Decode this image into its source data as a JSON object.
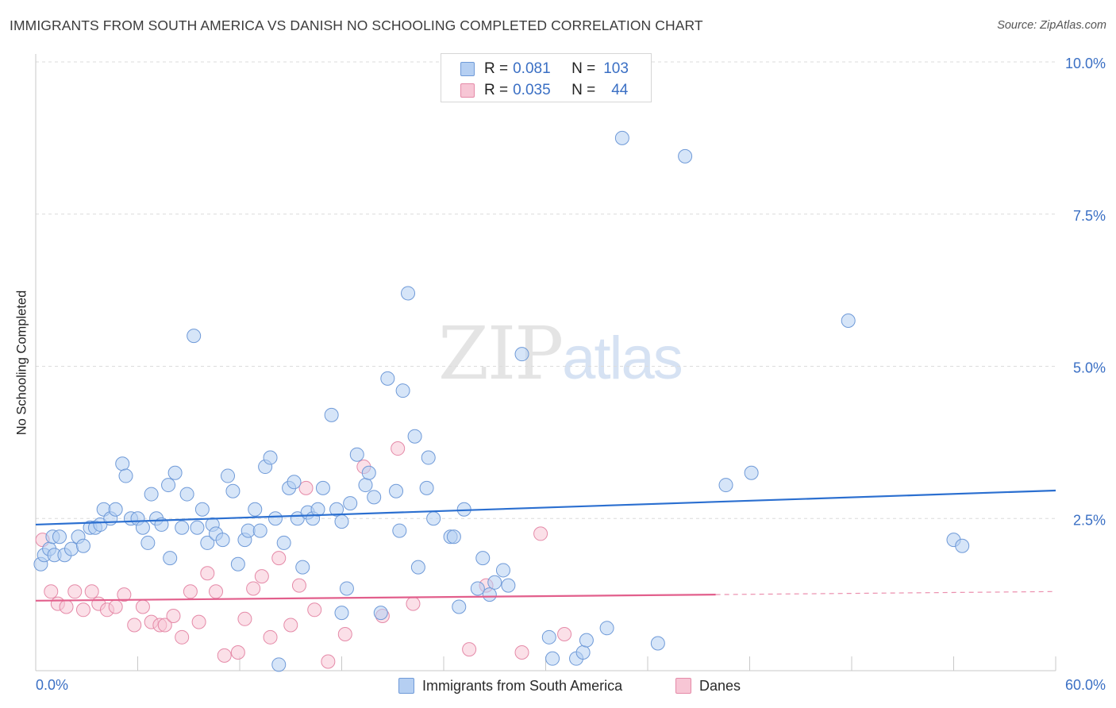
{
  "header": {
    "title": "IMMIGRANTS FROM SOUTH AMERICA VS DANISH NO SCHOOLING COMPLETED CORRELATION CHART",
    "source": "Source: ZipAtlas.com"
  },
  "watermark": {
    "part1": "ZIP",
    "part2": "atlas"
  },
  "legend": {
    "rows": [
      {
        "r_label": "R =",
        "r_value": "0.081",
        "n_label": "N =",
        "n_value": "103",
        "color": "#aecbf0",
        "border": "#6f9ad8"
      },
      {
        "r_label": "R =",
        "r_value": "0.035",
        "n_label": "N =",
        "n_value": "44",
        "color": "#f6c3d3",
        "border": "#e58aa8"
      }
    ]
  },
  "bottom_legend": {
    "series1": "Immigrants from South America",
    "series2": "Danes"
  },
  "colors": {
    "blue_fill": "#b5cff2",
    "blue_stroke": "#6f9ad8",
    "blue_line": "#2b6fd0",
    "pink_fill": "#f7c6d5",
    "pink_stroke": "#e58aa8",
    "pink_line": "#e25f8c",
    "tick_text": "#3a6fc4",
    "grid": "#dcdcdc"
  },
  "chart_data": {
    "type": "scatter",
    "title": "IMMIGRANTS FROM SOUTH AMERICA VS DANISH NO SCHOOLING COMPLETED CORRELATION CHART",
    "xlabel": "",
    "ylabel": "No Schooling Completed",
    "xlim": [
      0,
      60
    ],
    "ylim": [
      0,
      10.0
    ],
    "x_tick_labels": [
      "0.0%",
      "60.0%"
    ],
    "y_ticks": [
      2.5,
      5.0,
      7.5,
      10.0
    ],
    "y_tick_labels": [
      "2.5%",
      "5.0%",
      "7.5%",
      "10.0%"
    ],
    "grid": "horizontal dashed",
    "series": [
      {
        "name": "Immigrants from South America",
        "trend": {
          "x": [
            0,
            60
          ],
          "y": [
            2.4,
            2.96
          ]
        },
        "points": [
          [
            0.3,
            1.75
          ],
          [
            0.5,
            1.9
          ],
          [
            0.8,
            2.0
          ],
          [
            1.0,
            2.2
          ],
          [
            1.1,
            1.9
          ],
          [
            1.4,
            2.2
          ],
          [
            1.7,
            1.9
          ],
          [
            2.1,
            2.0
          ],
          [
            2.5,
            2.2
          ],
          [
            2.8,
            2.05
          ],
          [
            3.2,
            2.35
          ],
          [
            3.5,
            2.35
          ],
          [
            3.8,
            2.4
          ],
          [
            4.0,
            2.65
          ],
          [
            4.4,
            2.5
          ],
          [
            4.7,
            2.65
          ],
          [
            5.1,
            3.4
          ],
          [
            5.3,
            3.2
          ],
          [
            5.6,
            2.5
          ],
          [
            6.0,
            2.5
          ],
          [
            6.3,
            2.35
          ],
          [
            6.6,
            2.1
          ],
          [
            6.8,
            2.9
          ],
          [
            7.1,
            2.5
          ],
          [
            7.4,
            2.4
          ],
          [
            7.8,
            3.05
          ],
          [
            7.9,
            1.85
          ],
          [
            8.2,
            3.25
          ],
          [
            8.6,
            2.35
          ],
          [
            8.9,
            2.9
          ],
          [
            9.3,
            5.5
          ],
          [
            9.5,
            2.35
          ],
          [
            9.8,
            2.65
          ],
          [
            10.1,
            2.1
          ],
          [
            10.4,
            2.4
          ],
          [
            10.6,
            2.25
          ],
          [
            11.0,
            2.15
          ],
          [
            11.3,
            3.2
          ],
          [
            11.6,
            2.95
          ],
          [
            11.9,
            1.75
          ],
          [
            12.3,
            2.15
          ],
          [
            12.5,
            2.3
          ],
          [
            12.9,
            2.65
          ],
          [
            13.2,
            2.3
          ],
          [
            13.5,
            3.35
          ],
          [
            13.8,
            3.5
          ],
          [
            14.1,
            2.5
          ],
          [
            14.6,
            2.1
          ],
          [
            14.9,
            3.0
          ],
          [
            15.2,
            3.1
          ],
          [
            15.4,
            2.5
          ],
          [
            15.7,
            1.7
          ],
          [
            16.0,
            2.6
          ],
          [
            16.3,
            2.5
          ],
          [
            16.6,
            2.65
          ],
          [
            16.9,
            3.0
          ],
          [
            17.4,
            4.2
          ],
          [
            17.7,
            2.65
          ],
          [
            18.0,
            2.45
          ],
          [
            18.3,
            1.35
          ],
          [
            18.5,
            2.75
          ],
          [
            18.9,
            3.55
          ],
          [
            19.4,
            3.05
          ],
          [
            19.6,
            3.25
          ],
          [
            19.9,
            2.85
          ],
          [
            20.3,
            0.95
          ],
          [
            20.7,
            4.8
          ],
          [
            21.2,
            2.95
          ],
          [
            21.4,
            2.3
          ],
          [
            21.6,
            4.6
          ],
          [
            21.9,
            6.2
          ],
          [
            22.3,
            3.85
          ],
          [
            22.5,
            1.7
          ],
          [
            23.0,
            3.0
          ],
          [
            23.1,
            3.5
          ],
          [
            23.4,
            2.5
          ],
          [
            24.4,
            2.2
          ],
          [
            24.6,
            2.2
          ],
          [
            24.9,
            1.05
          ],
          [
            25.2,
            2.65
          ],
          [
            26.0,
            1.35
          ],
          [
            26.3,
            1.85
          ],
          [
            26.7,
            1.25
          ],
          [
            27.0,
            1.45
          ],
          [
            27.5,
            1.65
          ],
          [
            27.8,
            1.4
          ],
          [
            28.6,
            5.2
          ],
          [
            30.2,
            0.55
          ],
          [
            30.4,
            0.2
          ],
          [
            31.8,
            0.2
          ],
          [
            32.2,
            0.3
          ],
          [
            32.4,
            0.5
          ],
          [
            33.6,
            0.7
          ],
          [
            34.5,
            8.75
          ],
          [
            36.6,
            0.45
          ],
          [
            38.2,
            8.45
          ],
          [
            40.6,
            3.05
          ],
          [
            42.1,
            3.25
          ],
          [
            47.8,
            5.75
          ],
          [
            54.0,
            2.15
          ],
          [
            54.5,
            2.05
          ],
          [
            18.0,
            0.95
          ],
          [
            14.3,
            0.1
          ]
        ]
      },
      {
        "name": "Danes",
        "trend": {
          "x": [
            0,
            40
          ],
          "y": [
            1.15,
            1.25
          ]
        },
        "trend_dashed": {
          "x": [
            40,
            60
          ],
          "y": [
            1.25,
            1.3
          ]
        },
        "points": [
          [
            0.4,
            2.15
          ],
          [
            0.9,
            1.3
          ],
          [
            1.3,
            1.1
          ],
          [
            1.8,
            1.05
          ],
          [
            2.3,
            1.3
          ],
          [
            2.8,
            1.0
          ],
          [
            3.3,
            1.3
          ],
          [
            3.7,
            1.1
          ],
          [
            4.2,
            1.0
          ],
          [
            4.7,
            1.05
          ],
          [
            5.2,
            1.25
          ],
          [
            5.8,
            0.75
          ],
          [
            6.3,
            1.05
          ],
          [
            6.8,
            0.8
          ],
          [
            7.3,
            0.75
          ],
          [
            7.6,
            0.75
          ],
          [
            8.1,
            0.9
          ],
          [
            8.6,
            0.55
          ],
          [
            9.1,
            1.3
          ],
          [
            9.6,
            0.8
          ],
          [
            10.1,
            1.6
          ],
          [
            10.6,
            1.3
          ],
          [
            11.1,
            0.25
          ],
          [
            11.9,
            0.3
          ],
          [
            12.3,
            0.85
          ],
          [
            12.8,
            1.35
          ],
          [
            13.3,
            1.55
          ],
          [
            13.8,
            0.55
          ],
          [
            14.3,
            1.85
          ],
          [
            15.0,
            0.75
          ],
          [
            15.5,
            1.4
          ],
          [
            15.9,
            3.0
          ],
          [
            16.4,
            1.0
          ],
          [
            17.2,
            0.15
          ],
          [
            18.2,
            0.6
          ],
          [
            19.3,
            3.35
          ],
          [
            20.4,
            0.9
          ],
          [
            21.3,
            3.65
          ],
          [
            22.2,
            1.1
          ],
          [
            25.5,
            0.35
          ],
          [
            26.5,
            1.4
          ],
          [
            28.6,
            0.3
          ],
          [
            29.7,
            2.25
          ],
          [
            31.1,
            0.6
          ]
        ]
      }
    ]
  }
}
